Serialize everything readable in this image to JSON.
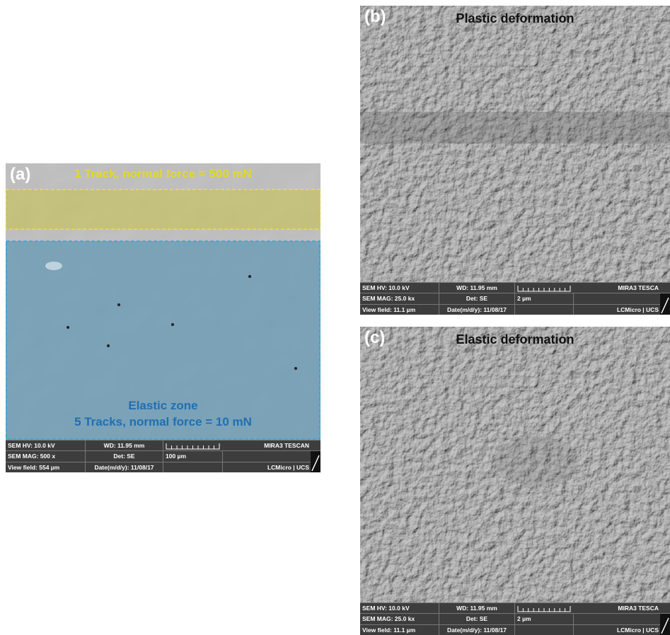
{
  "panels": [
    {
      "label": "(a)",
      "top_annotation": "1 Track, normal force = 500 mN",
      "zone_label": "Elastic zone",
      "bottom_annotation": "5 Tracks, normal force = 10 mN",
      "info_bar": {
        "hv": "SEM HV: 10.0 kV",
        "wd": "WD: 11.95 mm",
        "brand": "MIRA3 TESCAN",
        "mag": "SEM MAG: 500 x",
        "det": "Det: SE",
        "scale": "100 µm",
        "view_field": "View field: 554 µm",
        "date": "Date(m/d/y): 11/08/17",
        "lab": "LCMicro | UCS"
      }
    },
    {
      "label": "(b)",
      "title": "Plastic deformation",
      "info_bar": {
        "hv": "SEM HV: 10.0 kV",
        "wd": "WD: 11.95 mm",
        "brand": "MIRA3 TESCA",
        "mag": "SEM MAG: 25.0 kx",
        "det": "Det: SE",
        "scale": "2 µm",
        "view_field": "View field: 11.1 µm",
        "date": "Date(m/d/y): 11/08/17",
        "lab": "LCMicro | UCS"
      }
    },
    {
      "label": "(c)",
      "title": "Elastic deformation",
      "info_bar": {
        "hv": "SEM HV: 10.0 kV",
        "wd": "WD: 11.95 mm",
        "brand": "MIRA3 TESCA",
        "mag": "SEM MAG: 25.0 kx",
        "det": "Det: SE",
        "scale": "2 µm",
        "view_field": "View field: 11.1 µm",
        "date": "Date(m/d/y): 11/08/17",
        "lab": "LCMicro | UCS"
      }
    }
  ]
}
